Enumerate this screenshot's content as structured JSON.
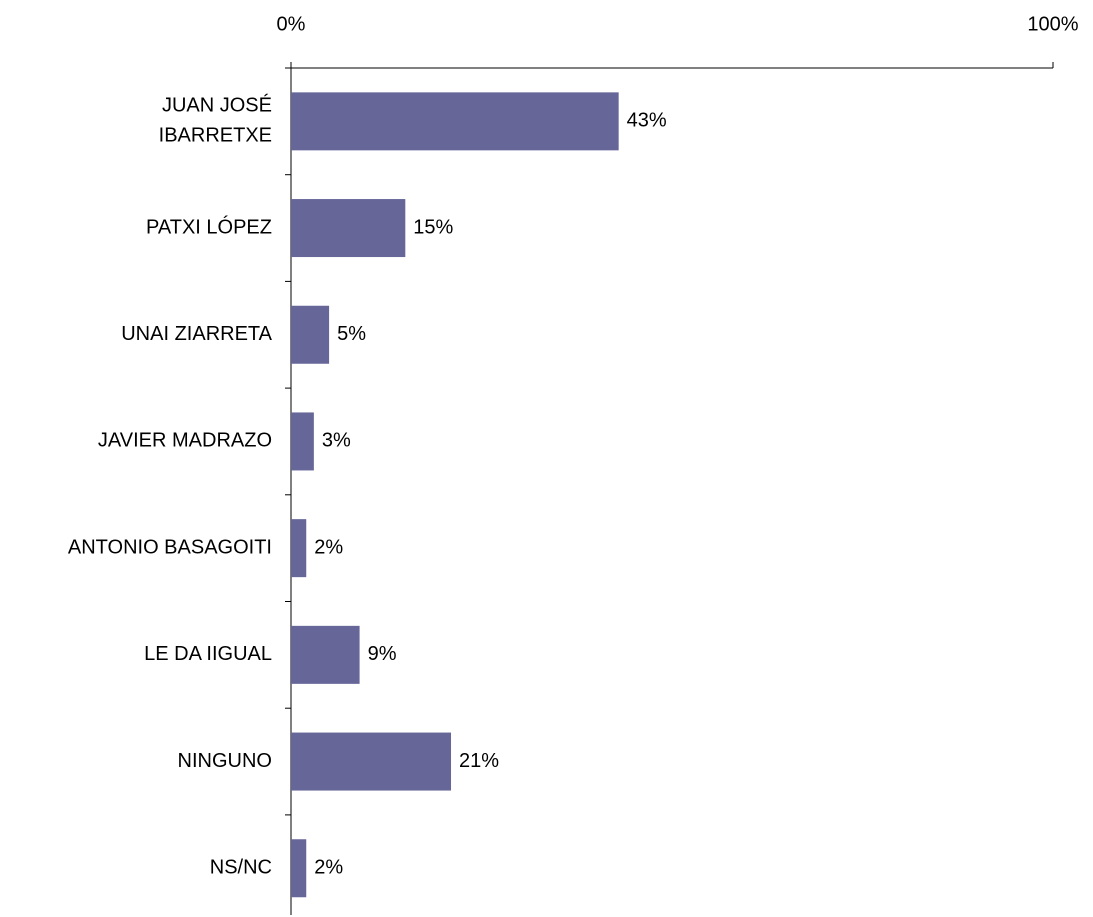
{
  "chart_data": {
    "type": "bar",
    "orientation": "horizontal",
    "categories": [
      "JUAN JOSÉ\nIBARRETXE",
      "PATXI LÓPEZ",
      "UNAI ZIARRETA",
      "JAVIER MADRAZO",
      "ANTONIO BASAGOITI",
      "LE DA IIGUAL",
      "NINGUNO",
      "NS/NC"
    ],
    "values": [
      43,
      15,
      5,
      3,
      2,
      9,
      21,
      2
    ],
    "value_labels": [
      "43%",
      "15%",
      "5%",
      "3%",
      "2%",
      "9%",
      "21%",
      "2%"
    ],
    "color": "#666699",
    "xlim": [
      0,
      100
    ],
    "xticks": [
      {
        "value": 0,
        "label": "0%"
      },
      {
        "value": 100,
        "label": "100%"
      }
    ],
    "grid": false
  }
}
